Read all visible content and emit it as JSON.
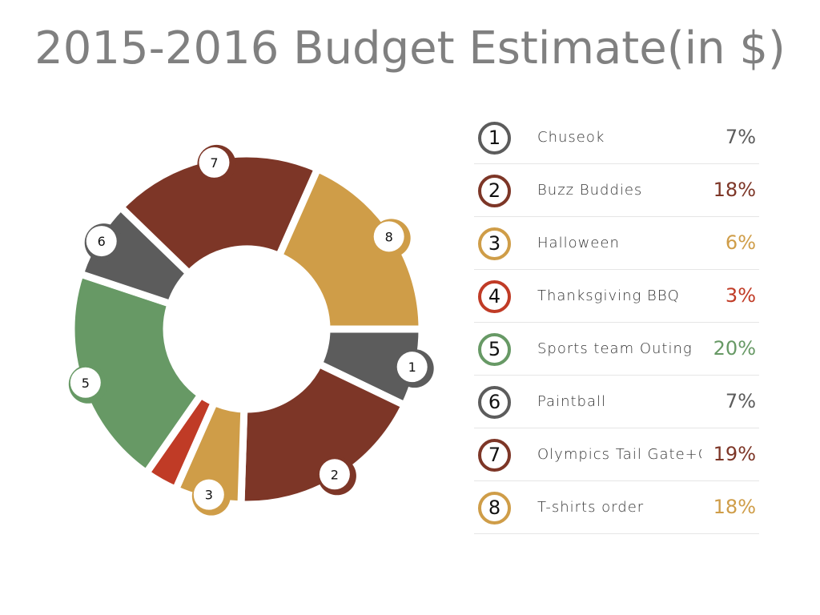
{
  "chart_data": {
    "type": "pie",
    "variant": "donut",
    "title": "2015-2016 Budget Estimate(in $)",
    "legend_position": "right",
    "series": [
      {
        "index": "1",
        "label": "Chuseok",
        "value": 7,
        "display": "7%",
        "color": "#5c5c5c"
      },
      {
        "index": "2",
        "label": "Buzz Buddies",
        "value": 18,
        "display": "18%",
        "color": "#7d3627"
      },
      {
        "index": "3",
        "label": "Halloween",
        "value": 6,
        "display": "6%",
        "color": "#cf9d48"
      },
      {
        "index": "4",
        "label": "Thanksgiving BBQ",
        "value": 3,
        "display": "3%",
        "color": "#c03b26"
      },
      {
        "index": "5",
        "label": "Sports team Outing",
        "value": 20,
        "display": "20%",
        "color": "#679965"
      },
      {
        "index": "6",
        "label": "Paintball",
        "value": 7,
        "display": "7%",
        "color": "#5c5c5c"
      },
      {
        "index": "7",
        "label": "Olympics Tail Gate+C",
        "value": 19,
        "display": "19%",
        "color": "#7d3627"
      },
      {
        "index": "8",
        "label": "T-shirts order",
        "value": 18,
        "display": "18%",
        "color": "#cf9d48"
      }
    ]
  }
}
